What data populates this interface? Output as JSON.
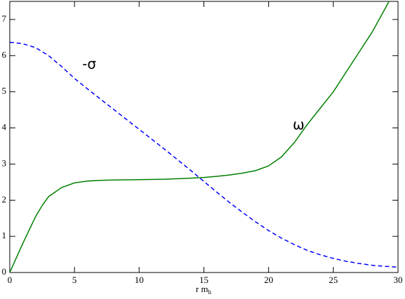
{
  "chart_data": {
    "type": "line",
    "x_label": "r m",
    "x_label_subscript": "h",
    "xlim": [
      0,
      30
    ],
    "xticks": [
      0,
      5,
      10,
      15,
      20,
      25,
      30
    ],
    "ylim": [
      0,
      7.5
    ],
    "yticks": [
      0,
      1,
      2,
      3,
      4,
      5,
      6,
      7
    ],
    "series": [
      {
        "name": "ω",
        "color": "#008000",
        "dash": false,
        "x": [
          0,
          1,
          2,
          2.5,
          3,
          4,
          5,
          6,
          7,
          8,
          10,
          12,
          14,
          15,
          16,
          17,
          18,
          19,
          20,
          21,
          22,
          23,
          24,
          25,
          26,
          27,
          28,
          29,
          29.3
        ],
        "values": [
          0,
          0.8,
          1.55,
          1.85,
          2.1,
          2.35,
          2.48,
          2.53,
          2.55,
          2.56,
          2.57,
          2.58,
          2.61,
          2.63,
          2.66,
          2.7,
          2.75,
          2.82,
          2.95,
          3.2,
          3.6,
          4.1,
          4.55,
          5.0,
          5.55,
          6.1,
          6.65,
          7.3,
          7.5
        ]
      },
      {
        "name": "-σ",
        "color": "#0000ff",
        "dash": true,
        "x": [
          0,
          1,
          2,
          3,
          4,
          5,
          6,
          7,
          8,
          9,
          10,
          11,
          12,
          13,
          14,
          15,
          16,
          17,
          18,
          19,
          20,
          21,
          22,
          23,
          24,
          25,
          26,
          27,
          28,
          29,
          30
        ],
        "values": [
          6.37,
          6.33,
          6.22,
          6.0,
          5.7,
          5.37,
          5.08,
          4.8,
          4.52,
          4.24,
          3.96,
          3.68,
          3.4,
          3.11,
          2.82,
          2.52,
          2.22,
          1.93,
          1.66,
          1.4,
          1.16,
          0.95,
          0.77,
          0.61,
          0.49,
          0.39,
          0.31,
          0.25,
          0.2,
          0.17,
          0.15
        ]
      }
    ]
  }
}
